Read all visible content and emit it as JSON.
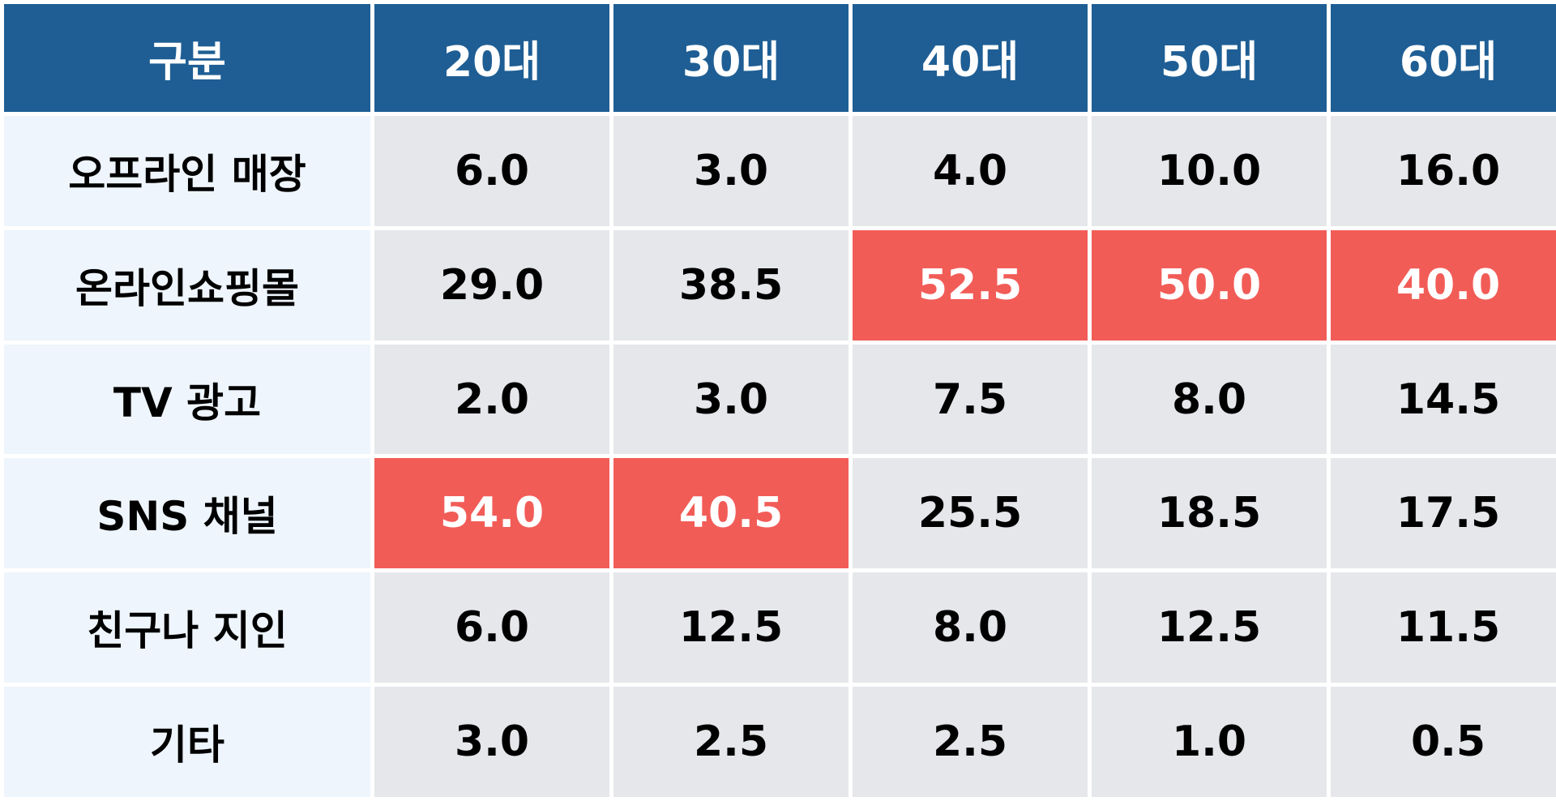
{
  "chart_data": {
    "type": "table",
    "columns": [
      "구분",
      "20대",
      "30대",
      "40대",
      "50대",
      "60대"
    ],
    "categories": [
      "20대",
      "30대",
      "40대",
      "50대",
      "60대"
    ],
    "rows": [
      {
        "label": "오프라인 매장",
        "values": [
          "6.0",
          "3.0",
          "4.0",
          "10.0",
          "16.0"
        ]
      },
      {
        "label": "온라인쇼핑몰",
        "values": [
          "29.0",
          "38.5",
          "52.5",
          "50.0",
          "40.0"
        ]
      },
      {
        "label": "TV 광고",
        "values": [
          "2.0",
          "3.0",
          "7.5",
          "8.0",
          "14.5"
        ]
      },
      {
        "label": "SNS 채널",
        "values": [
          "54.0",
          "40.5",
          "25.5",
          "18.5",
          "17.5"
        ]
      },
      {
        "label": "친구나 지인",
        "values": [
          "6.0",
          "12.5",
          "8.0",
          "12.5",
          "11.5"
        ]
      },
      {
        "label": "기타",
        "values": [
          "3.0",
          "2.5",
          "2.5",
          "1.0",
          "0.5"
        ]
      }
    ],
    "highlighted": [
      {
        "row": 1,
        "col": 2
      },
      {
        "row": 1,
        "col": 3
      },
      {
        "row": 1,
        "col": 4
      },
      {
        "row": 3,
        "col": 0
      },
      {
        "row": 3,
        "col": 1
      }
    ],
    "colors": {
      "header_bg": "#1e5e94",
      "header_text": "#ffffff",
      "row_label_bg": "#eef5fc",
      "cell_bg": "#e5e7ea",
      "highlight_bg": "#f25c57",
      "highlight_text": "#ffffff"
    }
  }
}
